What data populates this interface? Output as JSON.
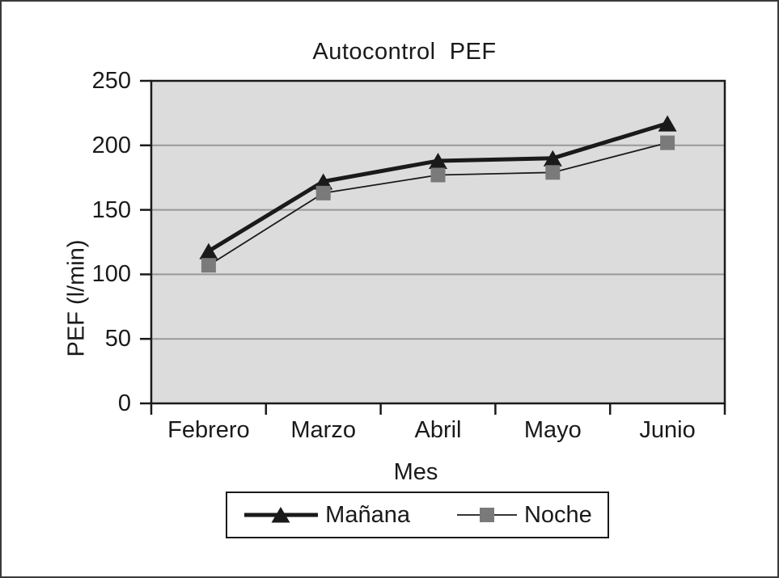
{
  "chart_data": {
    "type": "line",
    "title": "Autocontrol  PEF",
    "xlabel": "Mes",
    "ylabel": "PEF (l/min)",
    "categories": [
      "Febrero",
      "Marzo",
      "Abril",
      "Mayo",
      "Junio"
    ],
    "series": [
      {
        "name": "Mañana",
        "marker": "triangle",
        "line_color": "#1a1a1a",
        "marker_color": "#1a1a1a",
        "line_width": 5,
        "values": [
          118,
          172,
          188,
          190,
          217
        ]
      },
      {
        "name": "Noche",
        "marker": "square",
        "line_color": "#1a1a1a",
        "marker_color": "#7a7a7a",
        "line_width": 1.8,
        "values": [
          107,
          163,
          177,
          179,
          202
        ]
      }
    ],
    "ylim": [
      0,
      250
    ],
    "yticks": [
      0,
      50,
      100,
      150,
      200,
      250
    ],
    "grid": true,
    "gridline_values": [
      50,
      100,
      150,
      200
    ],
    "legend_position": "bottom",
    "colors": {
      "plot_bg": "#dcdcdc",
      "gridline": "#999999",
      "axis": "#1a1a1a",
      "frame": "#3a3a3a",
      "text": "#1a1a1a"
    }
  }
}
